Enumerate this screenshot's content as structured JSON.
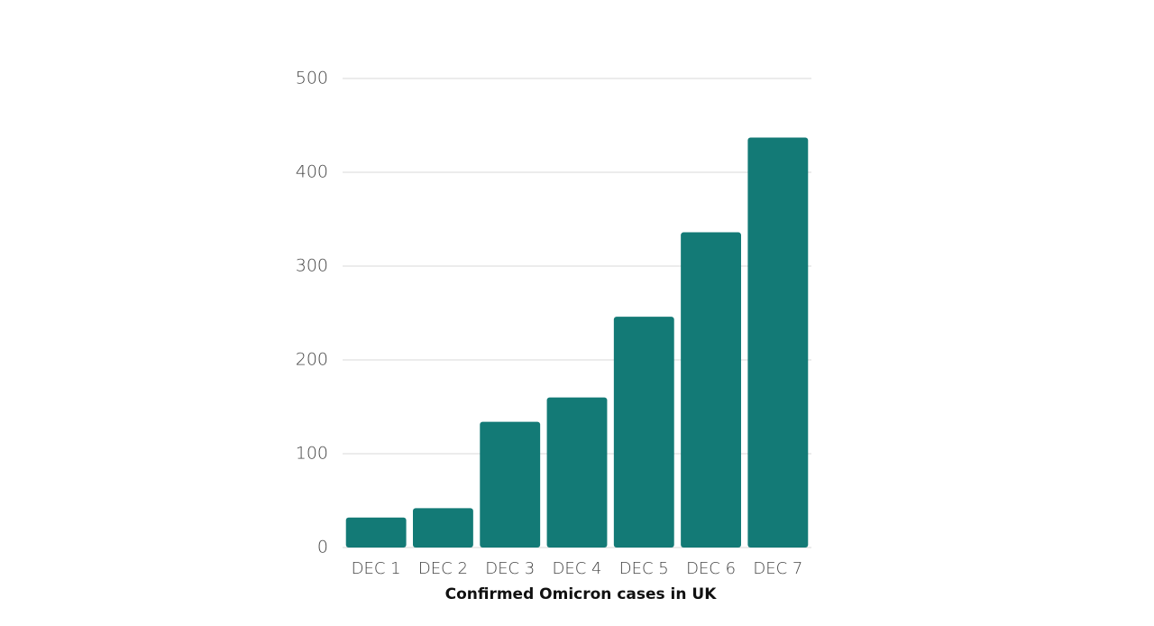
{
  "chart_data": {
    "type": "bar",
    "title": "Confirmed Omicron cases in UK",
    "categories": [
      "DEC 1",
      "DEC 2",
      "DEC 3",
      "DEC 4",
      "DEC 5",
      "DEC 6",
      "DEC 7"
    ],
    "values": [
      32,
      42,
      134,
      160,
      246,
      336,
      437
    ],
    "color": "#137a76",
    "ylim": [
      0,
      500
    ],
    "yticks": [
      0,
      100,
      200,
      300,
      400,
      500
    ],
    "grid": true
  }
}
